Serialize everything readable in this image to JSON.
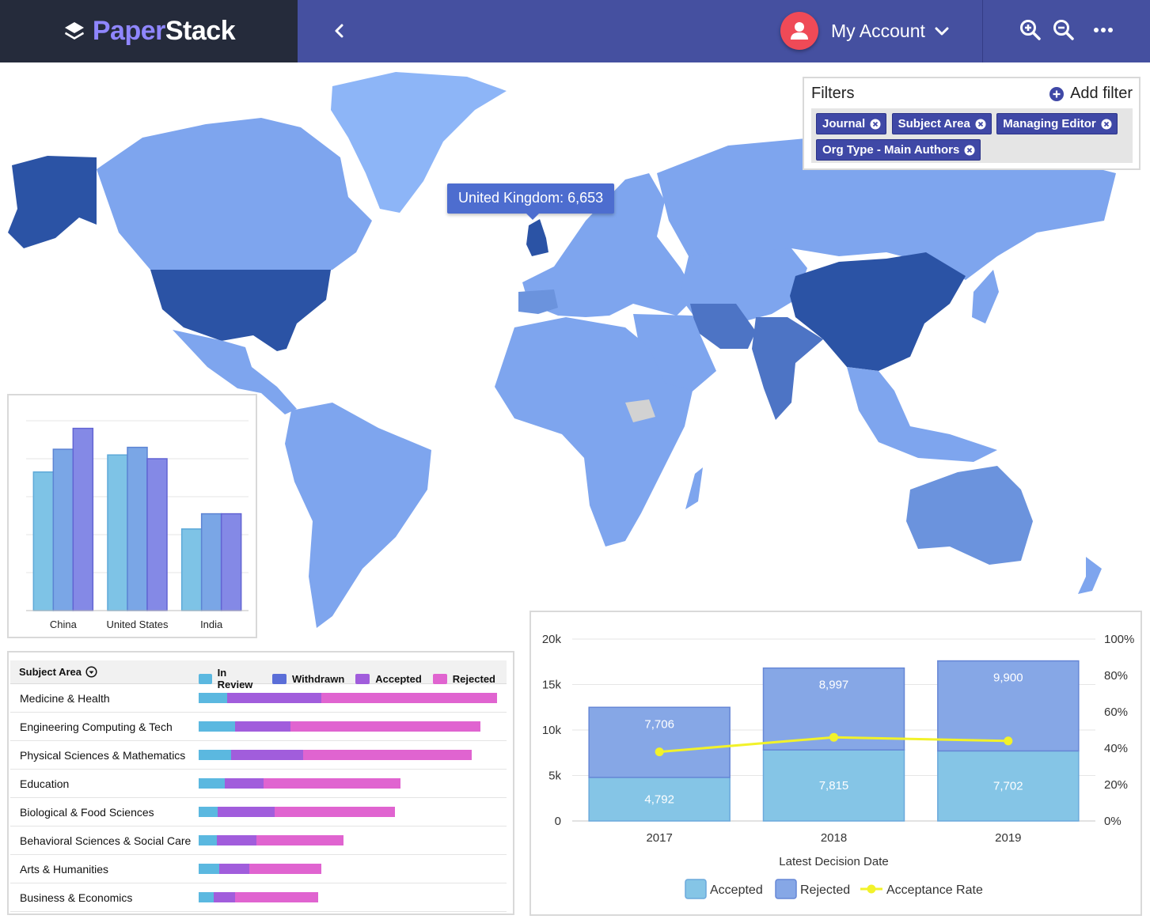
{
  "brand": {
    "name_part1": "Paper",
    "name_part2": "Stack"
  },
  "header": {
    "account_label": "My Account"
  },
  "icons": {
    "logo": "layers-icon",
    "back": "chevron-left-icon",
    "avatar": "user-icon",
    "account_menu": "chevron-down-icon",
    "zoom_in": "zoom-in-icon",
    "zoom_out": "zoom-out-icon",
    "more": "more-horizontal-icon"
  },
  "colors": {
    "header": "#4550a0",
    "brand_bg": "#252b3b",
    "brand_accent": "#8f86ff",
    "map_light": "#7ea5ee",
    "map_pale": "#8db5f7",
    "map_mid": "#6b93dd",
    "map_dark": "#2b53a5",
    "in_review": "#5bb8e0",
    "withdrawn": "#5b6ed8",
    "accepted": "#a15ddc",
    "rejected": "#e064d0"
  },
  "map": {
    "tooltip": "United Kingdom: 6,653"
  },
  "filters": {
    "title": "Filters",
    "add_label": "Add filter",
    "chips": [
      "Journal",
      "Subject Area",
      "Managing Editor",
      "Org Type - Main Authors"
    ]
  },
  "country_chart": {
    "chart_data": {
      "type": "bar",
      "categories": [
        "China",
        "United States",
        "India"
      ],
      "series": [
        {
          "values": [
            0.73,
            0.82,
            0.43
          ]
        },
        {
          "values": [
            0.85,
            0.86,
            0.51
          ]
        },
        {
          "values": [
            0.96,
            0.8,
            0.51
          ]
        }
      ],
      "ylim": [
        0,
        1
      ],
      "grid": true
    }
  },
  "subject_area": {
    "header": "Subject Area",
    "legend": [
      "In Review",
      "Withdrawn",
      "Accepted",
      "Rejected"
    ],
    "chart_data": {
      "type": "bar",
      "orientation": "horizontal",
      "stacked": true,
      "categories": [
        "Medicine & Health",
        "Engineering Computing & Tech",
        "Physical Sciences & Mathematics",
        "Education",
        "Biological & Food Sciences",
        "Behavioral Sciences & Social Care",
        "Arts & Humanities",
        "Business & Economics"
      ],
      "series": [
        {
          "name": "In Review",
          "values": [
            36,
            46,
            41,
            33,
            24,
            23,
            26,
            19
          ]
        },
        {
          "name": "Withdrawn",
          "values": [
            0,
            0,
            0,
            0,
            0,
            0,
            0,
            0
          ]
        },
        {
          "name": "Accepted",
          "values": [
            119,
            70,
            91,
            49,
            72,
            50,
            38,
            27
          ]
        },
        {
          "name": "Rejected",
          "values": [
            222,
            240,
            213,
            173,
            152,
            110,
            91,
            105
          ]
        }
      ]
    }
  },
  "decision_chart": {
    "chart_data": {
      "type": "bar",
      "stacked": true,
      "categories": [
        "2017",
        "2018",
        "2019"
      ],
      "xlabel": "Latest Decision Date",
      "ylim": [
        0,
        20000
      ],
      "yticks": [
        "0",
        "5k",
        "10k",
        "15k",
        "20k"
      ],
      "y2lim": [
        0,
        100
      ],
      "y2ticks": [
        "0%",
        "20%",
        "40%",
        "60%",
        "80%",
        "100%"
      ],
      "series": [
        {
          "name": "Accepted",
          "values": [
            4792,
            7815,
            7702
          ],
          "labels": [
            "4,792",
            "7,815",
            "7,702"
          ]
        },
        {
          "name": "Rejected",
          "values": [
            7706,
            8997,
            9900
          ],
          "labels": [
            "7,706",
            "8,997",
            "9,900"
          ]
        },
        {
          "name": "Acceptance Rate",
          "type": "line",
          "axis": "right",
          "values": [
            38,
            46,
            44
          ]
        }
      ],
      "legend_position": "bottom"
    }
  }
}
